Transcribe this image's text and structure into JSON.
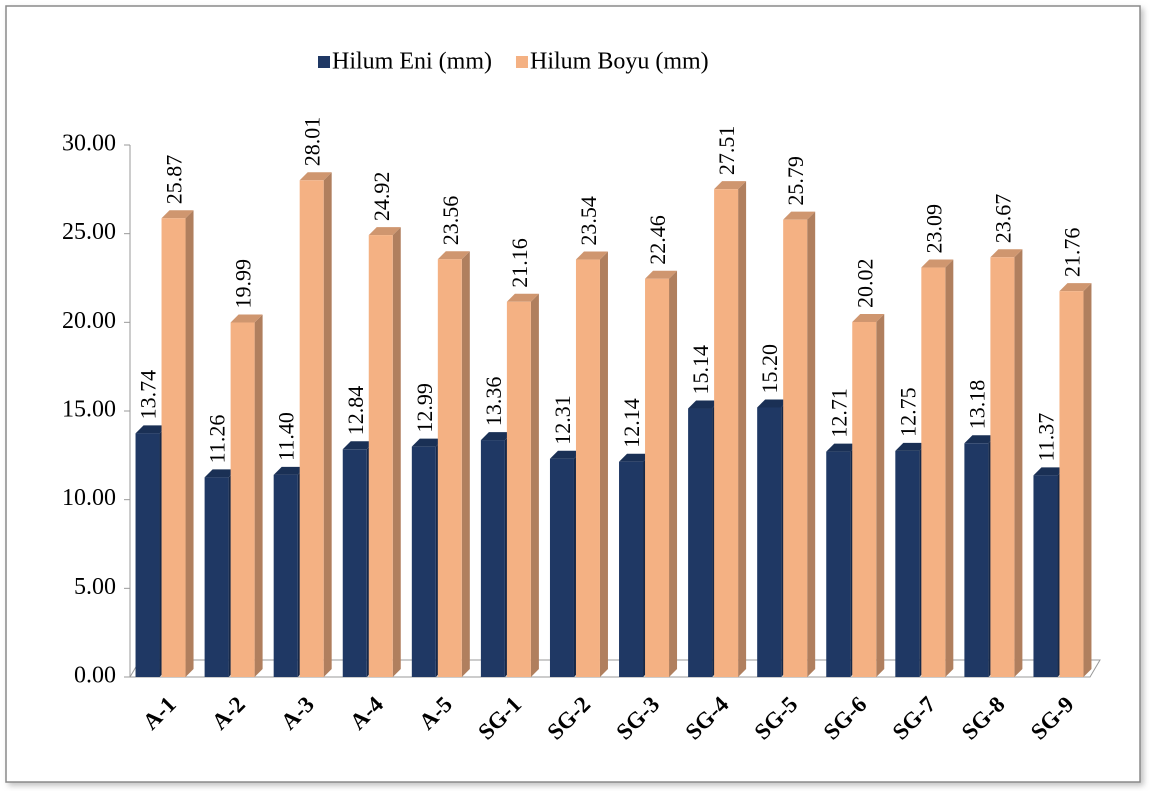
{
  "chart_data": {
    "type": "bar",
    "categories": [
      "A-1",
      "A-2",
      "A-3",
      "A-4",
      "A-5",
      "SG-1",
      "SG-2",
      "SG-3",
      "SG-4",
      "SG-5",
      "SG-6",
      "SG-7",
      "SG-8",
      "SG-9"
    ],
    "series": [
      {
        "name": "Hilum Eni (mm)",
        "color": "#1f3864",
        "values": [
          13.74,
          11.26,
          11.4,
          12.84,
          12.99,
          13.36,
          12.31,
          12.14,
          15.14,
          15.2,
          12.71,
          12.75,
          13.18,
          11.37
        ],
        "value_labels": [
          "13.74",
          "11.26",
          "11.40",
          "12.84",
          "12.99",
          "13.36",
          "12.31",
          "12.14",
          "15.14",
          "15.20",
          "12.71",
          "12.75",
          "13.18",
          "11.37"
        ]
      },
      {
        "name": "Hilum Boyu (mm)",
        "color": "#f4b183",
        "values": [
          25.87,
          19.99,
          28.01,
          24.92,
          23.56,
          21.16,
          23.54,
          22.46,
          27.51,
          25.79,
          20.02,
          23.09,
          23.67,
          21.76
        ],
        "value_labels": [
          "25.87",
          "19.99",
          "28.01",
          "24.92",
          "23.56",
          "21.16",
          "23.54",
          "22.46",
          "27.51",
          "25.79",
          "20.02",
          "23.09",
          "23.67",
          "21.76"
        ]
      }
    ],
    "ylim": [
      0,
      30
    ],
    "yticks": [
      {
        "value": 0,
        "label": "0.00"
      },
      {
        "value": 5,
        "label": "5.00"
      },
      {
        "value": 10,
        "label": "10.00"
      },
      {
        "value": 15,
        "label": "15.00"
      },
      {
        "value": 20,
        "label": "20.00"
      },
      {
        "value": 25,
        "label": "25.00"
      },
      {
        "value": 30,
        "label": "30.00"
      }
    ],
    "legend": "top"
  }
}
